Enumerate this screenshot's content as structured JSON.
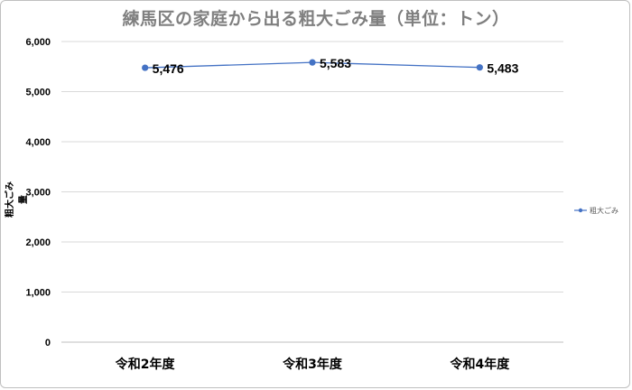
{
  "chart_data": {
    "type": "line",
    "title": "練馬区の家庭から出る粗大ごみ量（単位：トン）",
    "ylabel": "粗大ごみ量",
    "xlabel": "",
    "categories": [
      "令和2年度",
      "令和3年度",
      "令和4年度"
    ],
    "series": [
      {
        "name": "粗大ごみ",
        "values": [
          5476,
          5583,
          5483
        ],
        "color": "#4472c4"
      }
    ],
    "data_labels": [
      "5,476",
      "5,583",
      "5,483"
    ],
    "ylim": [
      0,
      6000
    ],
    "yticks": [
      0,
      1000,
      2000,
      3000,
      4000,
      5000,
      6000
    ],
    "ytick_labels": [
      "0",
      "1,000",
      "2,000",
      "3,000",
      "4,000",
      "5,000",
      "6,000"
    ],
    "grid": true,
    "legend": "right"
  }
}
